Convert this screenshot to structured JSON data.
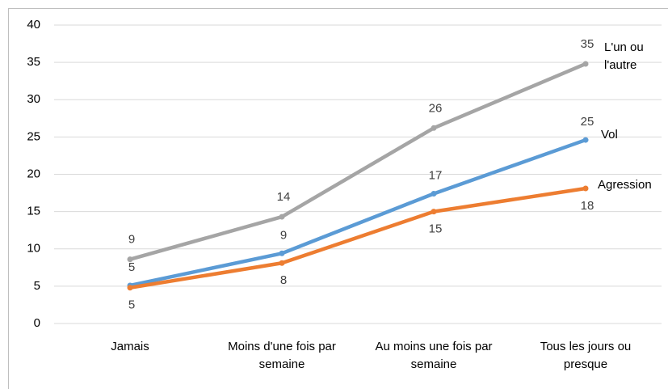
{
  "chart_data": {
    "type": "line",
    "categories": [
      "Jamais",
      "Moins d'une fois par semaine",
      "Au moins une fois par semaine",
      "Tous les jours ou presque"
    ],
    "series": [
      {
        "name": "L'un ou l'autre",
        "color": "#a5a5a5",
        "values": [
          8.6,
          14.3,
          26.2,
          34.8
        ],
        "value_labels": [
          "9",
          "14",
          "26",
          "35"
        ]
      },
      {
        "name": "Vol",
        "color": "#5b9bd5",
        "values": [
          5.1,
          9.4,
          17.4,
          24.6
        ],
        "value_labels": [
          "5",
          "9",
          "17",
          "25"
        ]
      },
      {
        "name": "Agression",
        "color": "#ed7d31",
        "values": [
          4.8,
          8.1,
          15.0,
          18.1
        ],
        "value_labels": [
          "5",
          "8",
          "15",
          "18"
        ]
      }
    ],
    "ylim": [
      0,
      40
    ],
    "yticks": [
      0,
      5,
      10,
      15,
      20,
      25,
      30,
      35,
      40
    ],
    "grid": true
  }
}
